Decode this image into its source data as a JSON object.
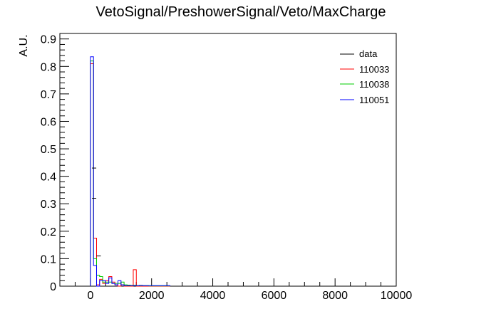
{
  "chart_data": {
    "type": "histogram",
    "title": "VetoSignal/PreshowerSignal/Veto/MaxCharge",
    "xlabel": "",
    "ylabel": "A.U.",
    "xlim": [
      -1000,
      10000
    ],
    "ylim": [
      0,
      0.92
    ],
    "x_ticks": [
      0,
      2000,
      4000,
      6000,
      8000,
      10000
    ],
    "x_tick_labels": [
      "0",
      "2000",
      "4000",
      "6000",
      "8000",
      "10000"
    ],
    "y_ticks": [
      0,
      0.1,
      0.2,
      0.3,
      0.4,
      0.5,
      0.6,
      0.7,
      0.8,
      0.9
    ],
    "y_tick_labels": [
      "0",
      "0.1",
      "0.2",
      "0.3",
      "0.4",
      "0.5",
      "0.6",
      "0.7",
      "0.8",
      "0.9"
    ],
    "grid": false,
    "legend_position": "top-right",
    "series": [
      {
        "name": "data",
        "color": "#000000",
        "edges": [],
        "values": []
      },
      {
        "name": "110033",
        "color": "#ff0000",
        "edges": [
          0,
          100,
          200,
          300,
          400,
          500,
          600,
          700,
          800,
          900,
          1000,
          1100,
          1200,
          1300,
          1400,
          1500,
          1600,
          1700,
          1800,
          1900,
          2000,
          2100,
          2200,
          2300,
          2400,
          2500,
          2600
        ],
        "values": [
          0.81,
          0.175,
          0.005,
          0.025,
          0.01,
          0.02,
          0.035,
          0.015,
          0.005,
          0.0,
          0.005,
          0.0,
          0.0,
          0.0,
          0.06,
          0.0,
          0.0,
          0.0,
          0.0,
          0.0,
          0.0,
          0.0,
          0.0,
          0.0,
          0.0,
          0.0
        ]
      },
      {
        "name": "110038",
        "color": "#00cc00",
        "edges": [
          0,
          100,
          200,
          300,
          400,
          500,
          600,
          700,
          800,
          900,
          1000,
          1100,
          1200,
          1300,
          1400,
          1500,
          1600,
          1700,
          1800,
          1900,
          2000,
          2100,
          2200,
          2300,
          2400,
          2500,
          2600
        ],
        "values": [
          0.82,
          0.1,
          0.04,
          0.035,
          0.015,
          0.015,
          0.015,
          0.01,
          0.01,
          0.01,
          0.015,
          0.005,
          0.004,
          0.003,
          0.003,
          0.002,
          0.002,
          0.002,
          0.002,
          0.001,
          0.001,
          0.001,
          0.001,
          0.001,
          0.001,
          0.001
        ]
      },
      {
        "name": "110051",
        "color": "#0000ff",
        "edges": [
          0,
          100,
          200,
          300,
          400,
          500,
          600,
          700,
          800,
          900,
          1000,
          1100,
          1200,
          1300,
          1400,
          1500,
          1600,
          1700,
          1800,
          1900,
          2000,
          2100,
          2200,
          2300,
          2400,
          2500,
          2600
        ],
        "values": [
          0.835,
          0.075,
          0.0,
          0.02,
          0.02,
          0.01,
          0.03,
          0.01,
          0.005,
          0.02,
          0.005,
          0.002,
          0.002,
          0.002,
          0.002,
          0.002,
          0.003,
          0.002,
          0.002,
          0.002,
          0.002,
          0.002,
          0.002,
          0.002,
          0.002,
          0.002
        ]
      }
    ],
    "data_points": [
      {
        "x": 120,
        "y": 0.43
      },
      {
        "x": 120,
        "y": 0.32
      },
      {
        "x": 270,
        "y": 0.11
      }
    ]
  }
}
